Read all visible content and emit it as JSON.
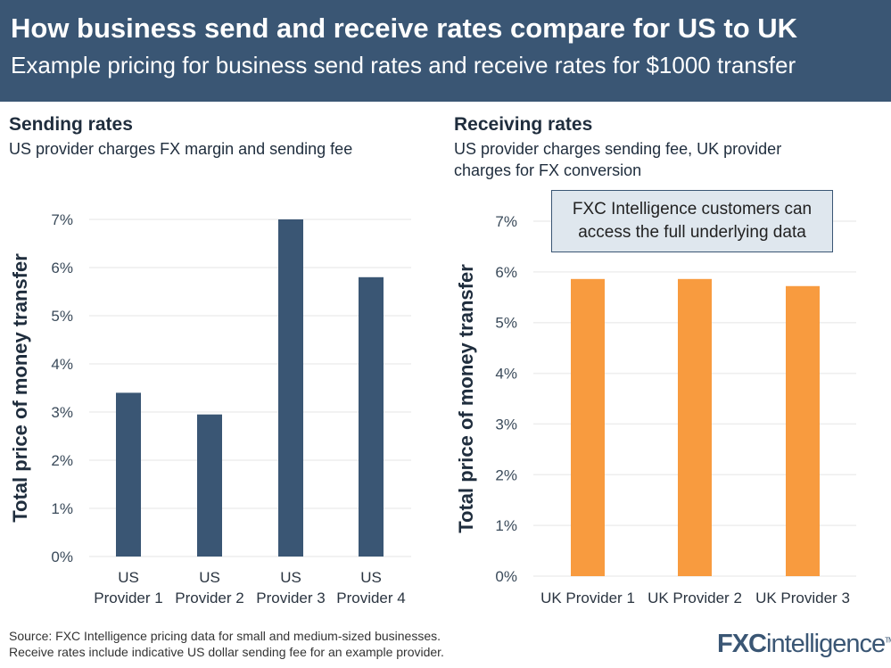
{
  "header": {
    "title": "How business send and receive rates compare for US to UK",
    "subtitle": "Example pricing for business send rates and receive rates for $1000 transfer"
  },
  "chart_data": [
    {
      "type": "bar",
      "title": "Sending rates",
      "subtitle": "US provider charges FX margin and sending fee",
      "ylabel": "Total price of money transfer",
      "ylim": [
        0,
        7
      ],
      "yticks": [
        "0%",
        "1%",
        "2%",
        "3%",
        "4%",
        "5%",
        "6%",
        "7%"
      ],
      "categories": [
        [
          "US",
          "Provider 1"
        ],
        [
          "US",
          "Provider 2"
        ],
        [
          "US",
          "Provider 3"
        ],
        [
          "US",
          "Provider 4"
        ]
      ],
      "values": [
        3.4,
        2.95,
        7.0,
        5.8
      ],
      "color": "#3a5674",
      "grid": true
    },
    {
      "type": "bar",
      "title": "Receiving rates",
      "subtitle": "US provider charges sending fee, UK provider charges for FX conversion",
      "ylabel": "Total price of money transfer",
      "ylim": [
        0,
        7
      ],
      "yticks": [
        "0%",
        "1%",
        "2%",
        "3%",
        "4%",
        "5%",
        "6%",
        "7%"
      ],
      "categories": [
        [
          "UK Provider 1"
        ],
        [
          "UK Provider 2"
        ],
        [
          "UK Provider 3"
        ]
      ],
      "values": [
        5.86,
        5.86,
        5.72
      ],
      "color": "#f89b3f",
      "grid": true
    }
  ],
  "callout": {
    "line1": "FXC Intelligence customers can",
    "line2": "access the full underlying data"
  },
  "footer": {
    "source1": "Source: FXC Intelligence pricing data for small and medium-sized businesses.",
    "source2": "Receive rates include indicative US dollar sending fee for an example provider.",
    "logo": "FXCintelligence"
  }
}
